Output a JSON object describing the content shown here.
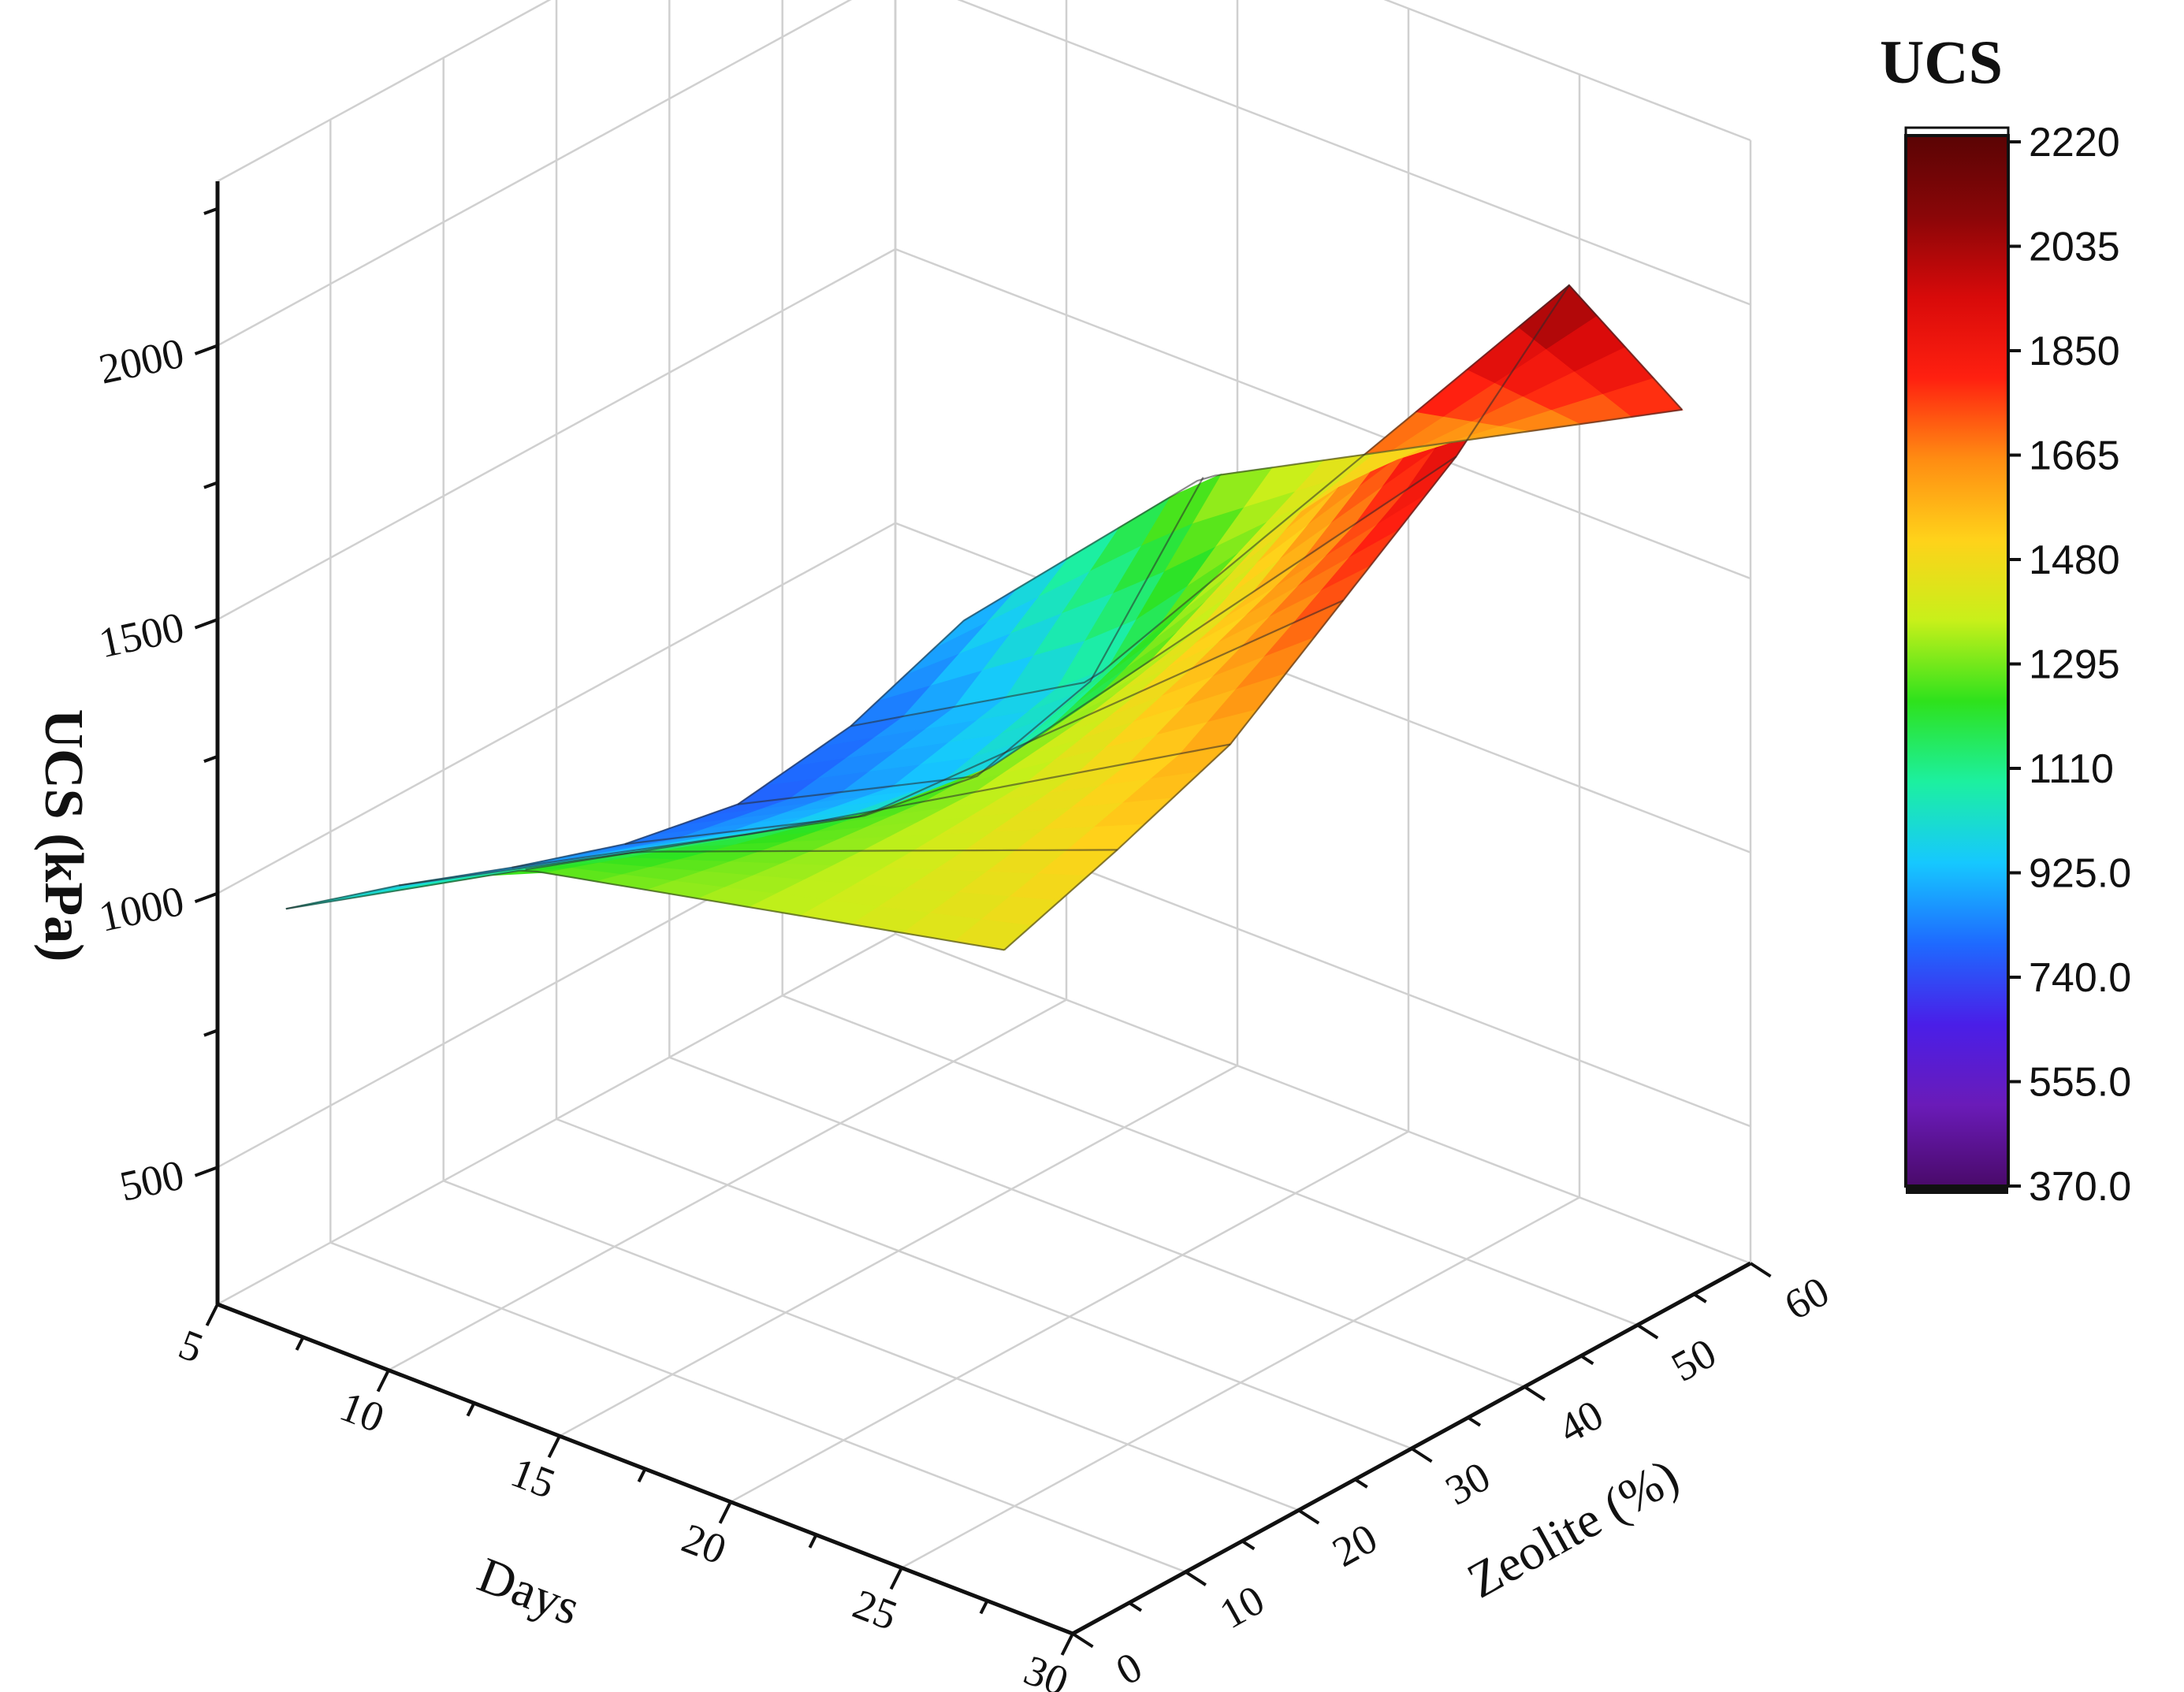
{
  "chart_data": {
    "type": "surface3d",
    "x_axis": {
      "label": "Days",
      "ticks": [
        "5",
        "10",
        "15",
        "20",
        "25",
        "30"
      ],
      "range": [
        5,
        30
      ]
    },
    "y_axis": {
      "label": "Zeolite (%)",
      "ticks": [
        "0",
        "10",
        "20",
        "30",
        "40",
        "50",
        "60"
      ],
      "range": [
        0,
        60
      ]
    },
    "z_axis": {
      "label": "UCS (kPa)",
      "ticks": [
        "500",
        "1000",
        "1500",
        "2000"
      ],
      "range": [
        250,
        2300
      ]
    },
    "days": [
      7,
      14,
      28
    ],
    "zeolite": [
      0,
      10,
      20,
      30,
      40,
      50,
      60
    ],
    "ucs": [
      [
        1020,
        950,
        870,
        800,
        760,
        790,
        870
      ],
      [
        1260,
        1180,
        1100,
        1020,
        980,
        1040,
        1300
      ],
      [
        1450,
        1520,
        1600,
        1750,
        1900,
        2100,
        1760
      ]
    ],
    "colorbar": {
      "title": "UCS",
      "min": 370,
      "max": 2220,
      "labels": [
        "2220",
        "2035",
        "1850",
        "1665",
        "1480",
        "1295",
        "1110",
        "925.0",
        "740.0",
        "555.0",
        "370.0"
      ],
      "colors": [
        "#4a0a6a",
        "#6a1bb8",
        "#4a1ee8",
        "#1e6aff",
        "#16c8ff",
        "#1cf0a0",
        "#2ee21c",
        "#c8f01a",
        "#ffd21a",
        "#ff8c12",
        "#ff2010",
        "#d80a0a",
        "#8a0608",
        "#5a0404"
      ]
    }
  }
}
